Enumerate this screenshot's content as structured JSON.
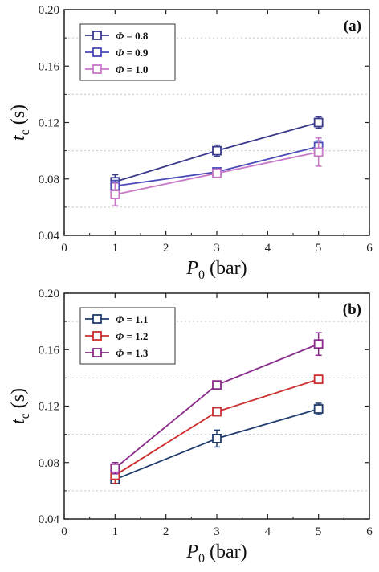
{
  "chart_data": [
    {
      "type": "line",
      "panel_label": "(a)",
      "xlabel": {
        "main": "P",
        "sub": "0",
        "unit": " (bar)"
      },
      "ylabel": {
        "main": "t",
        "sub": "c",
        "unit": " (s)"
      },
      "xlim": [
        0,
        6
      ],
      "ylim": [
        0.04,
        0.2
      ],
      "xticks": [
        "0",
        "1",
        "2",
        "3",
        "4",
        "5",
        "6"
      ],
      "yticks": [
        "0.04",
        "0.08",
        "0.12",
        "0.16",
        "0.20"
      ],
      "grid": "horizontal dotted",
      "legend_position": "top-left",
      "x": [
        1,
        3,
        5
      ],
      "series": [
        {
          "name": "Φ = 0.8",
          "legend_symbol": "Φ",
          "legend_rest": " = 0.8",
          "color": "#3a3a8c",
          "values": [
            0.078,
            0.1,
            0.12
          ],
          "error": [
            0.005,
            0.004,
            0.004
          ]
        },
        {
          "name": "Φ = 0.9",
          "legend_symbol": "Φ",
          "legend_rest": " = 0.9",
          "color": "#4a4ab8",
          "values": [
            0.075,
            0.085,
            0.103
          ],
          "error": [
            0.004,
            0.002,
            0.004
          ]
        },
        {
          "name": "Φ = 1.0",
          "legend_symbol": "Φ",
          "legend_rest": " = 1.0",
          "color": "#c878c8",
          "values": [
            0.069,
            0.084,
            0.099
          ],
          "error": [
            0.008,
            0.002,
            0.01
          ]
        }
      ]
    },
    {
      "type": "line",
      "panel_label": "(b)",
      "xlabel": {
        "main": "P",
        "sub": "0",
        "unit": " (bar)"
      },
      "ylabel": {
        "main": "t",
        "sub": "c",
        "unit": " (s)"
      },
      "xlim": [
        0,
        6
      ],
      "ylim": [
        0.04,
        0.2
      ],
      "xticks": [
        "0",
        "1",
        "2",
        "3",
        "4",
        "5",
        "6"
      ],
      "yticks": [
        "0.04",
        "0.08",
        "0.12",
        "0.16",
        "0.20"
      ],
      "grid": "horizontal dotted",
      "legend_position": "top-left",
      "x": [
        1,
        3,
        5
      ],
      "series": [
        {
          "name": "Φ = 1.1",
          "legend_symbol": "Φ",
          "legend_rest": " = 1.1",
          "color": "#1f3b6e",
          "values": [
            0.068,
            0.097,
            0.118
          ],
          "error": [
            0.003,
            0.006,
            0.004
          ]
        },
        {
          "name": "Φ = 1.2",
          "legend_symbol": "Φ",
          "legend_rest": " = 1.2",
          "color": "#cc2f2f",
          "values": [
            0.071,
            0.116,
            0.139
          ],
          "error": [
            0.006,
            0.002,
            0.002
          ]
        },
        {
          "name": "Φ = 1.3",
          "legend_symbol": "Φ",
          "legend_rest": " = 1.3",
          "color": "#8a2a8a",
          "values": [
            0.076,
            0.135,
            0.164
          ],
          "error": [
            0.004,
            0.002,
            0.008
          ]
        }
      ]
    }
  ]
}
